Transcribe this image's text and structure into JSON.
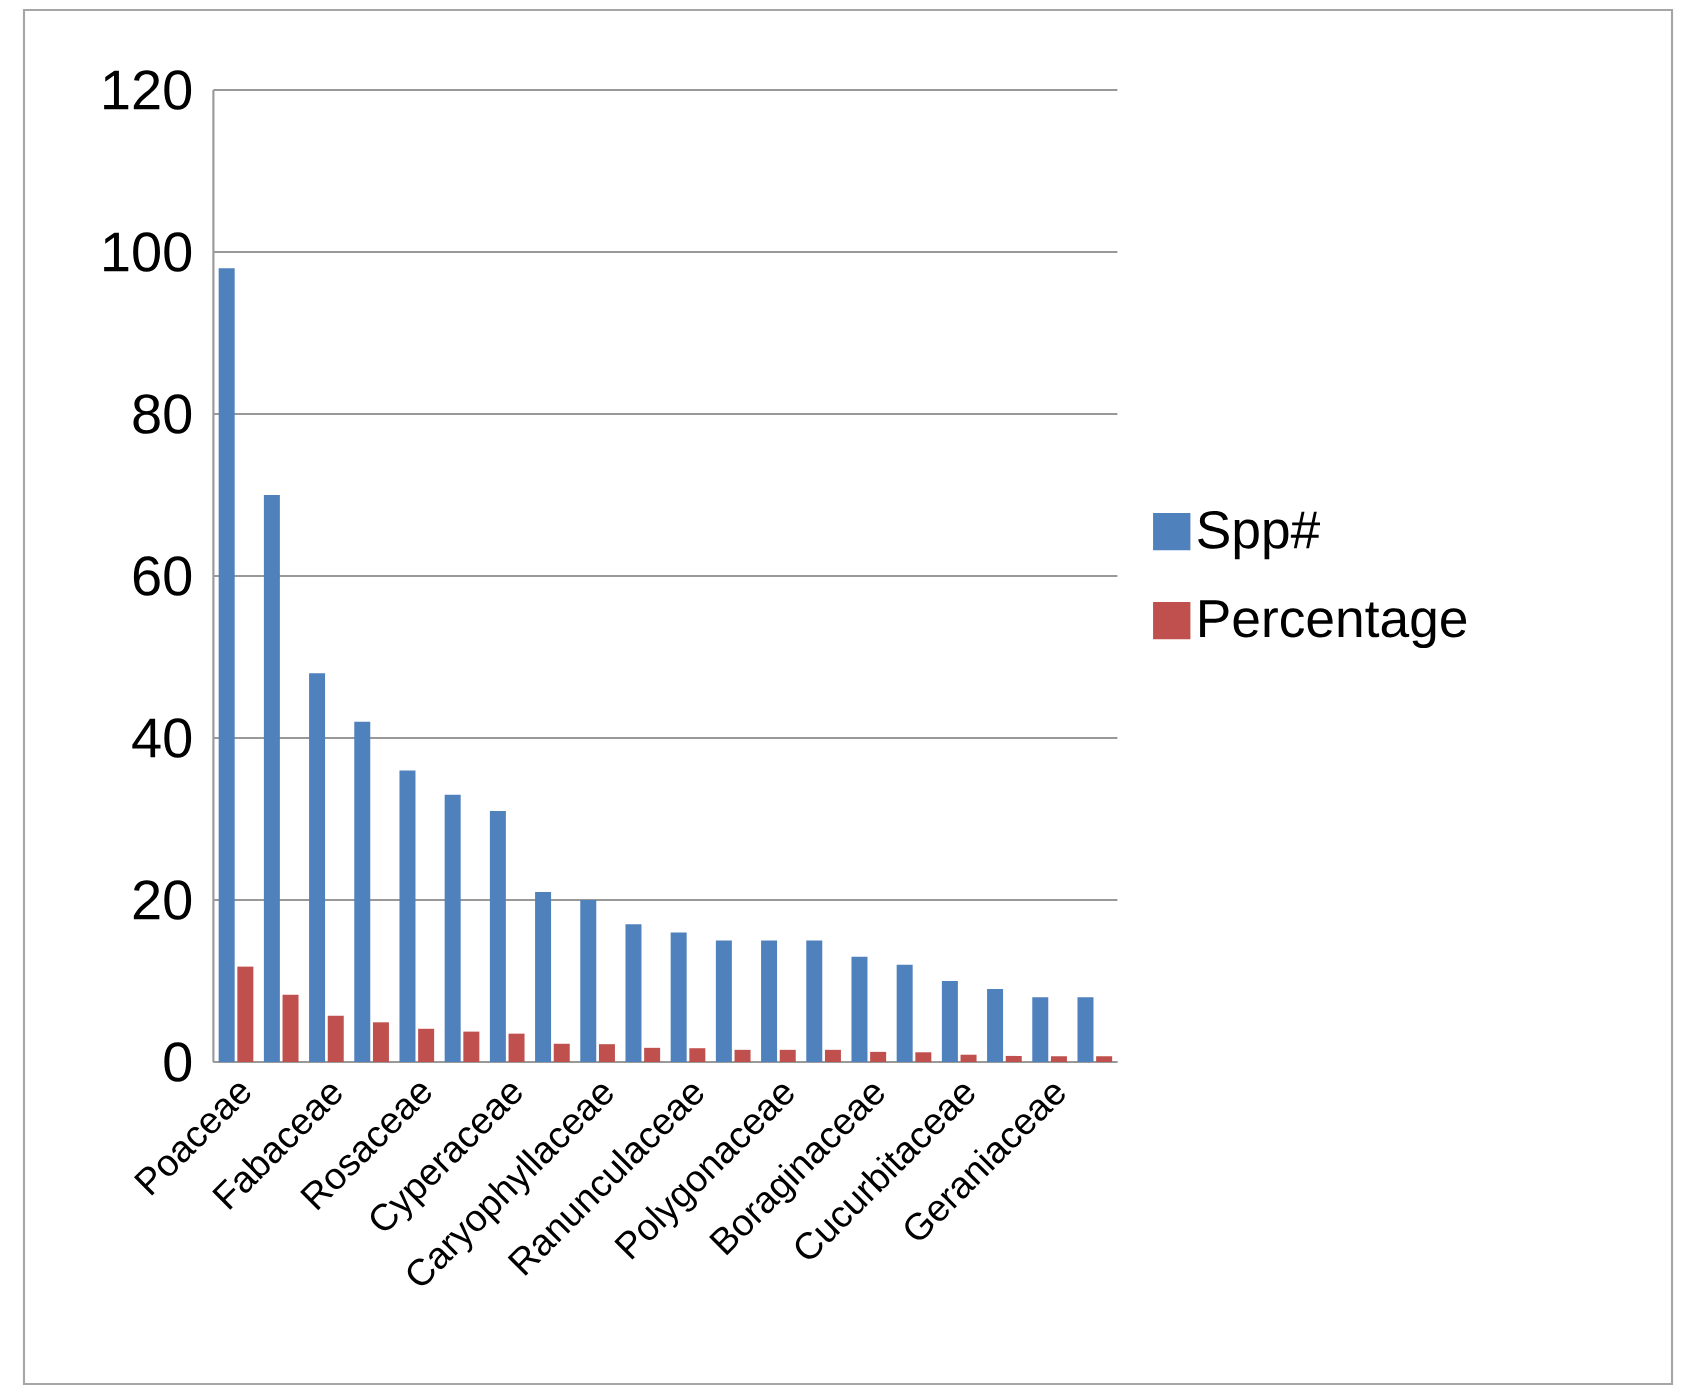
{
  "chart_data": {
    "type": "bar",
    "categories": [
      "Poaceae",
      null,
      "Fabaceae",
      null,
      "Rosaceae",
      null,
      "Cyperaceae",
      null,
      "Caryophyllaceae",
      null,
      "Ranunculaceae",
      null,
      "Polygonaceae",
      null,
      "Boraginaceae",
      null,
      "Cucurbitaceae",
      null,
      "Geraniaceae",
      null
    ],
    "series": [
      {
        "name": "Spp#",
        "color": "#4f81bd",
        "values": [
          98,
          70,
          48,
          42,
          36,
          33,
          31,
          21,
          20,
          17,
          16,
          15,
          15,
          15,
          13,
          12,
          10,
          9,
          8,
          8
        ]
      },
      {
        "name": "Percentage",
        "color": "#c0504d",
        "values": [
          11.8,
          8.3,
          5.7,
          4.9,
          4.1,
          3.75,
          3.5,
          2.25,
          2.2,
          1.75,
          1.7,
          1.5,
          1.5,
          1.5,
          1.25,
          1.2,
          0.9,
          0.75,
          0.7,
          0.7
        ]
      }
    ],
    "ylim": [
      0,
      120
    ],
    "yticks": [
      0,
      20,
      40,
      60,
      80,
      100,
      120
    ],
    "grid": "y",
    "legend": "right"
  }
}
